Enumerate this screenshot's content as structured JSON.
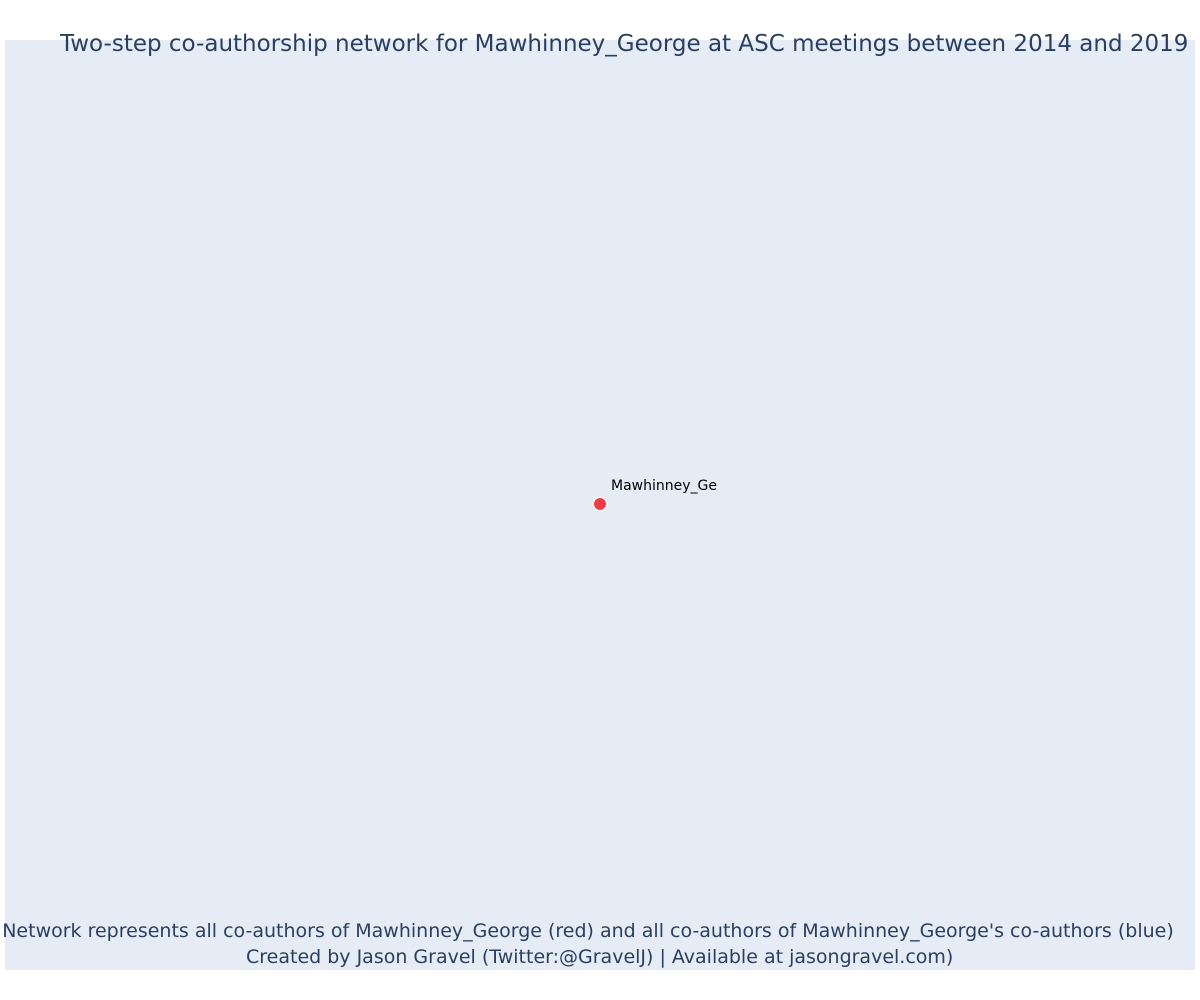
{
  "title": "Two-step co-authorship network for Mawhinney_George at ASC meetings between 2014 and 2019",
  "nodes": [
    {
      "label": "Mawhinney_Ge",
      "group": "focal",
      "color": "#ef3b45"
    }
  ],
  "footer": {
    "line1": "Network represents all co-authors of Mawhinney_George (red) and all co-authors of Mawhinney_George's co-authors (blue)",
    "line2": "Created by Jason Gravel (Twitter:@GravelJ) | Available at jasongravel.com)"
  },
  "colors": {
    "plot_background": "#e5ecf6",
    "text": "#2a3f5f",
    "focal_node": "#ef3b45"
  }
}
